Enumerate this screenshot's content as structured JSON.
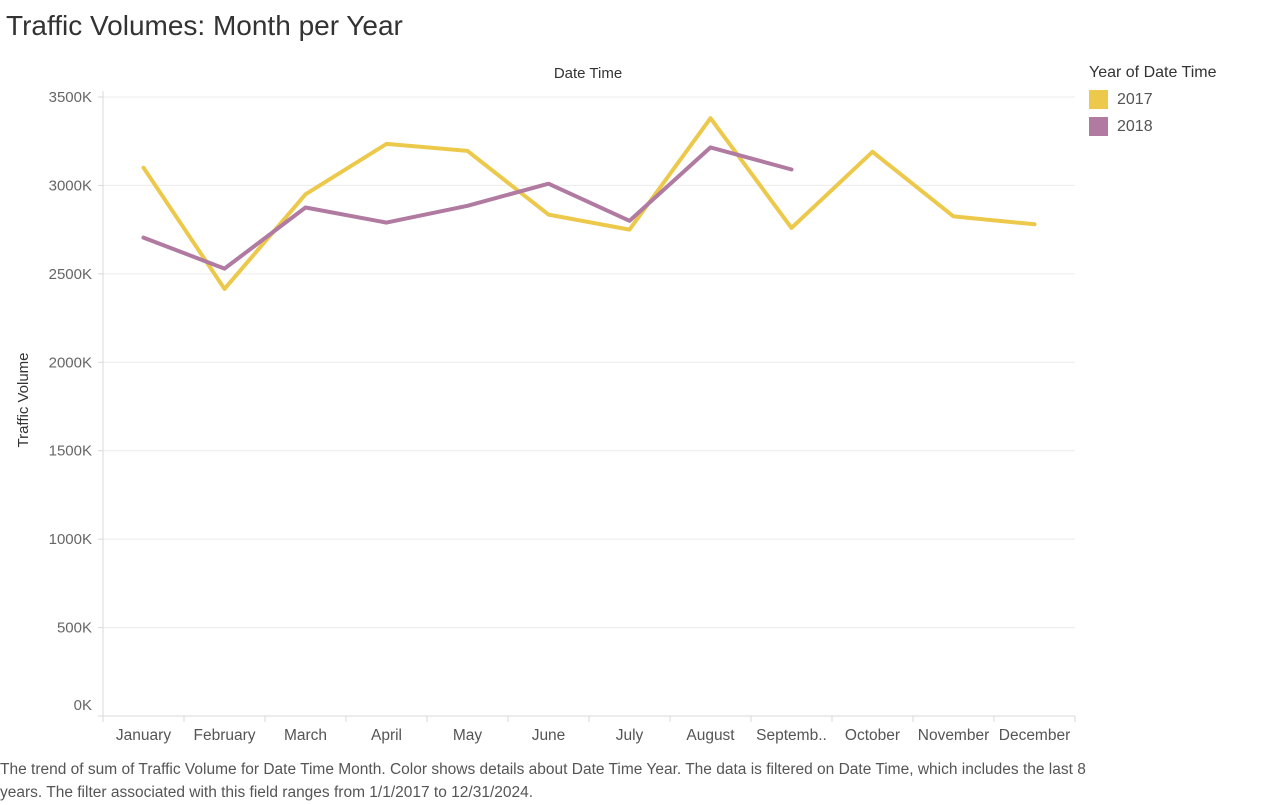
{
  "title": "Traffic Volumes: Month per Year",
  "legend": {
    "title": "Year of Date Time",
    "items": [
      {
        "label": "2017",
        "color": "#ECC94B"
      },
      {
        "label": "2018",
        "color": "#B07AA1"
      }
    ]
  },
  "caption": "The trend of sum of Traffic Volume for Date Time Month.  Color shows details about Date Time Year. The data is filtered on Date Time, which includes the last 8 years. The filter associated with this field ranges from 1/1/2017 to 12/31/2024.",
  "chart_data": {
    "type": "line",
    "title": "Traffic Volumes: Month per Year",
    "xlabel": "Date Time",
    "ylabel": "Traffic Volume",
    "categories": [
      "January",
      "February",
      "March",
      "April",
      "May",
      "June",
      "July",
      "August",
      "Septemb..",
      "October",
      "November",
      "December"
    ],
    "yticks": [
      "0K",
      "500K",
      "1000K",
      "1500K",
      "2000K",
      "2500K",
      "3000K",
      "3500K"
    ],
    "ylim": [
      0,
      3500000
    ],
    "grid": true,
    "legend_position": "top-right",
    "series": [
      {
        "name": "2017",
        "color": "#ECC94B",
        "values": [
          3100000,
          2415000,
          2950000,
          3235000,
          3195000,
          2835000,
          2750000,
          3380000,
          2760000,
          3190000,
          2825000,
          2780000
        ]
      },
      {
        "name": "2018",
        "color": "#B07AA1",
        "values": [
          2705000,
          2530000,
          2875000,
          2790000,
          2885000,
          3010000,
          2800000,
          3215000,
          3090000,
          null,
          null,
          null
        ]
      }
    ]
  }
}
